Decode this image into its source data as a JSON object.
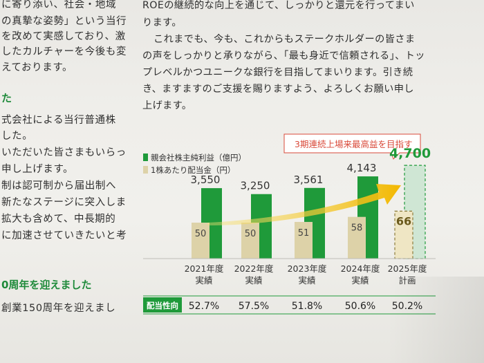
{
  "left_column": {
    "lines": [
      "に寄り添い、社会・地域",
      "の真摯な姿勢」という当行",
      "を改めて実感しており、激",
      "したカルチャーを今後も変",
      "えております。"
    ],
    "heading": "た",
    "lines2": [
      "式会社による当行普通株",
      "した。",
      "いただいた皆さまもいらっ",
      "申し上げます。",
      "制は認可制から届出制へ",
      "新たなステージに突入しま",
      "拡大も含めて、中長期的",
      "に加速させていきたいと考"
    ],
    "heading2": "0周年を迎えました",
    "lines3": [
      "創業150周年を迎えまし"
    ]
  },
  "right_column": {
    "lines": [
      "ROEの継続的な向上を通じて、しっかりと還元を行ってまい",
      "ります。",
      "これまでも、今も、これからもステークホルダーの皆さま",
      "の声をしっかりと承りながら、「最も身近で信頼される」、トッ",
      "プレベルかつユニークな銀行を目指してまいります。引き続",
      "き、ますますのご支援を賜りますよう、よろしくお願い申し",
      "上げます。"
    ]
  },
  "chart": {
    "callout": "3期連続上場来最高益を目指す",
    "payout_label": "配当性向",
    "colors": {
      "profit": "#1f9a3a",
      "dividend": "#ddd2a8",
      "plan_fill": "#cfe6d4",
      "accent": "#1f9a3a",
      "arrow": "#f3b800",
      "callout_border": "#d94a3a",
      "callout_text": "#d94a3a"
    }
  },
  "chart_data": {
    "type": "bar",
    "categories": [
      "2021年度\n実績",
      "2022年度\n実績",
      "2023年度\n実績",
      "2024年度\n実績",
      "2025年度\n計画"
    ],
    "category_lines": [
      [
        "2021年度",
        "実績"
      ],
      [
        "2022年度",
        "実績"
      ],
      [
        "2023年度",
        "実績"
      ],
      [
        "2024年度",
        "実績"
      ],
      [
        "2025年度",
        "計画"
      ]
    ],
    "series": [
      {
        "name": "親会社株主純利益（億円）",
        "values": [
          3550,
          3250,
          3561,
          4143,
          4700
        ],
        "labels": [
          "3,550",
          "3,250",
          "3,561",
          "4,143",
          "4,700"
        ]
      },
      {
        "name": "1株あたり配当金（円）",
        "values": [
          50,
          50,
          51,
          58,
          66
        ],
        "labels": [
          "50",
          "50",
          "51",
          "58",
          "66"
        ]
      }
    ],
    "payout_ratio": [
      "52.7%",
      "57.5%",
      "51.8%",
      "50.6%",
      "50.2%"
    ],
    "planned_index": 4
  }
}
